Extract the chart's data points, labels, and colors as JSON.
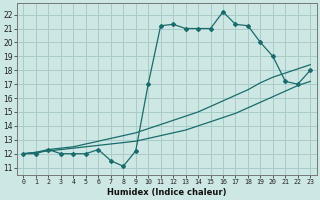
{
  "xlabel": "Humidex (Indice chaleur)",
  "bg_color": "#cde8e4",
  "grid_color": "#a8ccc8",
  "line_color": "#1a6b6b",
  "xlim": [
    -0.5,
    23.5
  ],
  "ylim": [
    10.5,
    22.8
  ],
  "yticks": [
    11,
    12,
    13,
    14,
    15,
    16,
    17,
    18,
    19,
    20,
    21,
    22
  ],
  "xticks": [
    0,
    1,
    2,
    3,
    4,
    5,
    6,
    7,
    8,
    9,
    10,
    11,
    12,
    13,
    14,
    15,
    16,
    17,
    18,
    19,
    20,
    21,
    22,
    23
  ],
  "line1_x": [
    0,
    1,
    2,
    3,
    4,
    5,
    6,
    7,
    8,
    9,
    10,
    11,
    12,
    13,
    14,
    15,
    16,
    17,
    18,
    19,
    20,
    21,
    22,
    23
  ],
  "line1_y": [
    12.0,
    12.0,
    12.3,
    12.0,
    12.0,
    12.0,
    12.3,
    11.5,
    11.1,
    12.2,
    17.0,
    21.2,
    21.3,
    21.0,
    21.0,
    21.0,
    22.2,
    21.3,
    21.2,
    20.0,
    19.0,
    17.2,
    17.0,
    18.0
  ],
  "line2_x": [
    0,
    1,
    2,
    3,
    4,
    5,
    6,
    7,
    8,
    9,
    10,
    11,
    12,
    13,
    14,
    15,
    16,
    17,
    18,
    19,
    20,
    21,
    22,
    23
  ],
  "line2_y": [
    12.0,
    12.1,
    12.3,
    12.4,
    12.5,
    12.7,
    12.9,
    13.1,
    13.3,
    13.5,
    13.8,
    14.1,
    14.4,
    14.7,
    15.0,
    15.4,
    15.8,
    16.2,
    16.6,
    17.1,
    17.5,
    17.8,
    18.1,
    18.4
  ],
  "line3_x": [
    0,
    1,
    2,
    3,
    4,
    5,
    6,
    7,
    8,
    9,
    10,
    11,
    12,
    13,
    14,
    15,
    16,
    17,
    18,
    19,
    20,
    21,
    22,
    23
  ],
  "line3_y": [
    12.0,
    12.1,
    12.2,
    12.3,
    12.4,
    12.5,
    12.6,
    12.7,
    12.8,
    12.9,
    13.1,
    13.3,
    13.5,
    13.7,
    14.0,
    14.3,
    14.6,
    14.9,
    15.3,
    15.7,
    16.1,
    16.5,
    16.9,
    17.2
  ],
  "markersize": 2.0,
  "linewidth": 0.9
}
